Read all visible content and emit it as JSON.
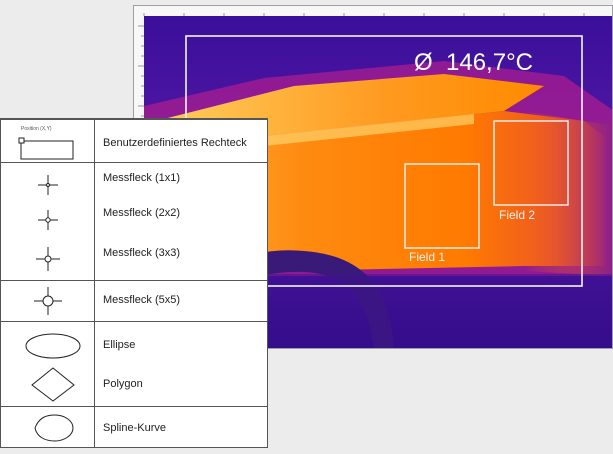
{
  "thermal_view": {
    "temperature_readout": "Ø  146,7°C",
    "field_1_label": "Field 1",
    "field_2_label": "Field 2",
    "colors": {
      "cold": "#2a0a8e",
      "mid": "#c21e8c",
      "warm": "#ff6a00",
      "hot": "#ffd24a"
    }
  },
  "legend": {
    "position_hint": "Position (X,Y)",
    "items": [
      {
        "symbol": "rectangle-icon",
        "label": "Benutzerdefiniertes Rechteck"
      },
      {
        "symbol": "spot-1x1-icon",
        "label": "Messfleck (1x1)"
      },
      {
        "symbol": "spot-2x2-icon",
        "label": "Messfleck (2x2)"
      },
      {
        "symbol": "spot-3x3-icon",
        "label": "Messfleck (3x3)"
      },
      {
        "symbol": "spot-5x5-icon",
        "label": "Messfleck (5x5)"
      },
      {
        "symbol": "ellipse-icon",
        "label": "Ellipse"
      },
      {
        "symbol": "polygon-icon",
        "label": "Polygon"
      },
      {
        "symbol": "spline-icon",
        "label": "Spline-Kurve"
      }
    ]
  }
}
